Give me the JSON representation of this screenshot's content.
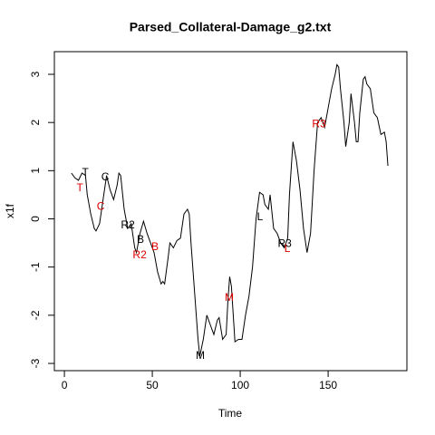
{
  "chart_data": {
    "type": "line",
    "title": "Parsed_Collateral-Damage_g2.txt",
    "x_label": "Time",
    "y_label": "x1f",
    "color": "#000000",
    "x": [
      4,
      6,
      8,
      10,
      12,
      13,
      15,
      17,
      18,
      20,
      22,
      24,
      26,
      28,
      30,
      31,
      32,
      34,
      36,
      38,
      40,
      41,
      43,
      45,
      47,
      49,
      51,
      53,
      55,
      56,
      57,
      59,
      60,
      62,
      64,
      66,
      68,
      70,
      71,
      72,
      74,
      76,
      77,
      79,
      81,
      83,
      85,
      87,
      88,
      90,
      92,
      93,
      94,
      95,
      97,
      99,
      101,
      103,
      105,
      107,
      109,
      111,
      113,
      114,
      116,
      117,
      119,
      121,
      123,
      125,
      127,
      128,
      130,
      132,
      134,
      136,
      138,
      140,
      142,
      144,
      146,
      148,
      150,
      152,
      154,
      155,
      156,
      157,
      159,
      160,
      162,
      163,
      165,
      166,
      167,
      168,
      170,
      171,
      172,
      174,
      176,
      178,
      180,
      182,
      183,
      184
    ],
    "values": [
      0.95,
      0.85,
      0.8,
      0.95,
      0.9,
      0.5,
      0.1,
      -0.2,
      -0.25,
      -0.1,
      0.4,
      0.9,
      0.6,
      0.4,
      0.7,
      0.95,
      0.9,
      0.2,
      -0.2,
      -0.1,
      -0.6,
      -0.7,
      -0.3,
      -0.05,
      -0.3,
      -0.5,
      -0.7,
      -1.1,
      -1.35,
      -1.3,
      -1.35,
      -0.8,
      -0.5,
      -0.6,
      -0.45,
      -0.4,
      0.1,
      0.2,
      0.1,
      -0.5,
      -1.5,
      -2.5,
      -2.85,
      -2.5,
      -2.0,
      -2.2,
      -2.4,
      -2.1,
      -2.05,
      -2.5,
      -2.4,
      -1.7,
      -1.2,
      -1.4,
      -2.55,
      -2.5,
      -2.5,
      -2.0,
      -1.6,
      -1.0,
      0.0,
      0.55,
      0.5,
      0.3,
      0.2,
      0.5,
      -0.2,
      -0.3,
      -0.5,
      -0.6,
      -0.4,
      0.5,
      1.6,
      1.2,
      0.6,
      -0.2,
      -0.7,
      -0.3,
      1.0,
      2.0,
      2.1,
      1.9,
      2.3,
      2.7,
      3.0,
      3.2,
      3.15,
      2.7,
      2.0,
      1.5,
      2.0,
      2.6,
      2.0,
      1.6,
      1.6,
      2.2,
      2.9,
      2.95,
      2.8,
      2.7,
      2.2,
      2.1,
      1.75,
      1.8,
      1.6,
      1.1
    ],
    "xlim": [
      -5.7,
      194.8
    ],
    "ylim": [
      -3.15,
      3.47
    ],
    "xticks": [
      0,
      50,
      100,
      150
    ],
    "yticks": [
      -3,
      -2,
      -1,
      0,
      1,
      2,
      3
    ],
    "annotations": [
      {
        "text": "T",
        "x": 11.9,
        "y": 0.95,
        "color": "#000000"
      },
      {
        "text": "T",
        "x": 8.8,
        "y": 0.63,
        "color": "#dd0000"
      },
      {
        "text": "C",
        "x": 23.2,
        "y": 0.86,
        "color": "#000000"
      },
      {
        "text": "C",
        "x": 20.6,
        "y": 0.25,
        "color": "#dd0000"
      },
      {
        "text": "R2",
        "x": 36.1,
        "y": -0.14,
        "color": "#000000"
      },
      {
        "text": "B",
        "x": 43.3,
        "y": -0.44,
        "color": "#000000"
      },
      {
        "text": "R2",
        "x": 42.8,
        "y": -0.76,
        "color": "#dd0000"
      },
      {
        "text": "B",
        "x": 51.5,
        "y": -0.59,
        "color": "#dd0000"
      },
      {
        "text": "M",
        "x": 77.3,
        "y": -2.85,
        "color": "#000000"
      },
      {
        "text": "M",
        "x": 93.8,
        "y": -1.64,
        "color": "#dd0000"
      },
      {
        "text": "L",
        "x": 111.3,
        "y": 0.03,
        "color": "#000000"
      },
      {
        "text": "R3",
        "x": 125.3,
        "y": -0.52,
        "color": "#000000"
      },
      {
        "text": "L",
        "x": 126.8,
        "y": -0.63,
        "color": "#dd0000"
      },
      {
        "text": "R3",
        "x": 144.8,
        "y": 1.96,
        "color": "#dd0000"
      }
    ]
  }
}
